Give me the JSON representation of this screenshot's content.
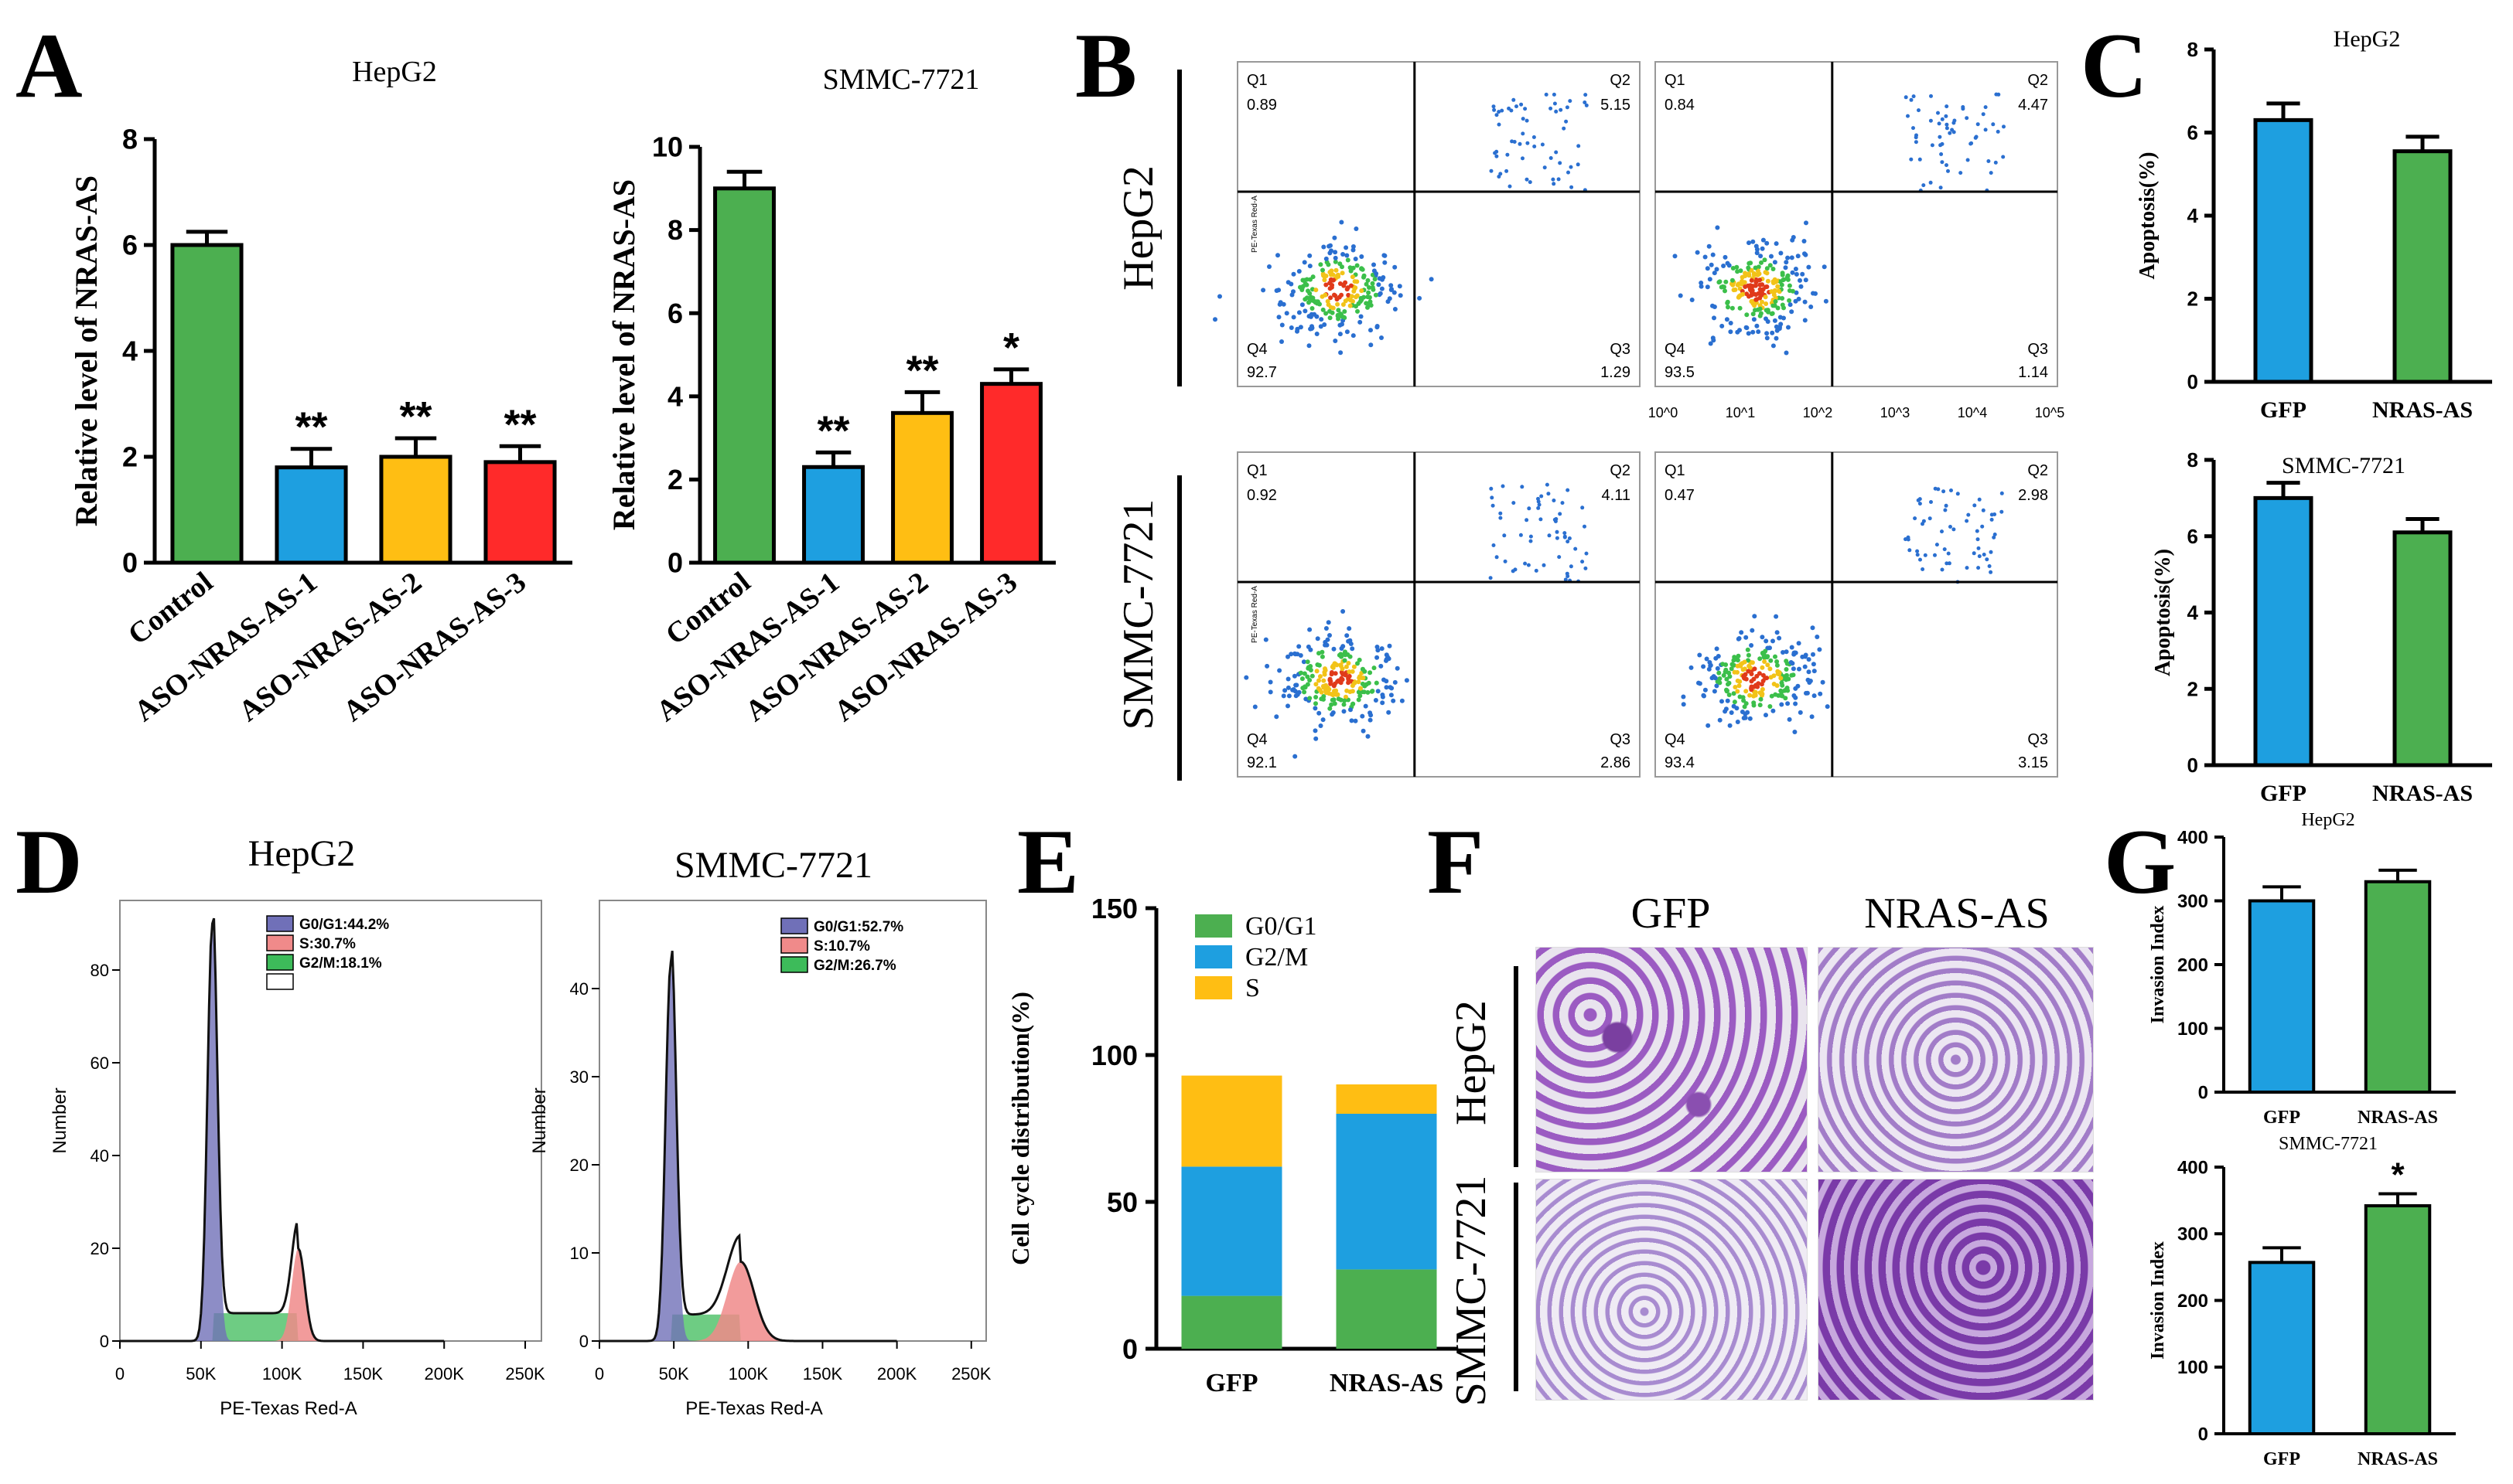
{
  "panels": {
    "A": "A",
    "B": "B",
    "C": "C",
    "D": "D",
    "E": "E",
    "F": "F",
    "G": "G"
  },
  "colors": {
    "green": "#4CAF50",
    "blue": "#1E9FE0",
    "orange": "#FFBE13",
    "red": "#FF2A2A",
    "axis": "#000000"
  },
  "chart_data": [
    {
      "id": "A1",
      "type": "bar",
      "title": "HepG2",
      "ylabel": "Relative level of NRAS-AS",
      "categories": [
        "Control",
        "ASO-NRAS-AS-1",
        "ASO-NRAS-AS-2",
        "ASO-NRAS-AS-3"
      ],
      "values": [
        6.0,
        1.8,
        2.0,
        1.9
      ],
      "errors": [
        0.25,
        0.35,
        0.35,
        0.3
      ],
      "significance": [
        "",
        "**",
        "**",
        "**"
      ],
      "colors": [
        "#4CAF50",
        "#1E9FE0",
        "#FFBE13",
        "#FF2A2A"
      ],
      "ylim": [
        0,
        8
      ],
      "yticks": [
        "0",
        "2",
        "4",
        "6",
        "8"
      ]
    },
    {
      "id": "A2",
      "type": "bar",
      "title": "SMMC-7721",
      "ylabel": "Relative level of NRAS-AS",
      "categories": [
        "Control",
        "ASO-NRAS-AS-1",
        "ASO-NRAS-AS-2",
        "ASO-NRAS-AS-3"
      ],
      "values": [
        9.0,
        2.3,
        3.6,
        4.3
      ],
      "errors": [
        0.4,
        0.35,
        0.5,
        0.35
      ],
      "significance": [
        "",
        "**",
        "**",
        "*"
      ],
      "colors": [
        "#4CAF50",
        "#1E9FE0",
        "#FFBE13",
        "#FF2A2A"
      ],
      "ylim": [
        0,
        10
      ],
      "yticks": [
        "0",
        "2",
        "4",
        "6",
        "8",
        "10"
      ]
    },
    {
      "id": "B",
      "type": "scatter",
      "row_labels": [
        "HepG2",
        "SMMC-7721"
      ],
      "plots": [
        {
          "Q1": "0.89",
          "Q2": "5.15",
          "Q3": "1.29",
          "Q4": "92.7"
        },
        {
          "Q1": "0.84",
          "Q2": "4.47",
          "Q3": "1.14",
          "Q4": "93.5"
        },
        {
          "Q1": "0.92",
          "Q2": "4.11",
          "Q3": "2.86",
          "Q4": "92.1"
        },
        {
          "Q1": "0.47",
          "Q2": "2.98",
          "Q3": "3.15",
          "Q4": "93.4"
        }
      ],
      "quadrant_labels": [
        "Q1",
        "Q2",
        "Q3",
        "Q4"
      ],
      "ylabel_small": "PE-Texas Red-A",
      "log_ticks": [
        "10^0",
        "10^1",
        "10^2",
        "10^3",
        "10^4",
        "10^5"
      ]
    },
    {
      "id": "C1",
      "type": "bar",
      "title": "HepG2",
      "ylabel": "Apoptosis(%)",
      "categories": [
        "GFP",
        "NRAS-AS"
      ],
      "values": [
        6.3,
        5.55
      ],
      "errors": [
        0.4,
        0.35
      ],
      "colors": [
        "#1E9FE0",
        "#4CAF50"
      ],
      "ylim": [
        0,
        8
      ],
      "yticks": [
        "0",
        "2",
        "4",
        "6",
        "8"
      ]
    },
    {
      "id": "C2",
      "type": "bar",
      "title": "SMMC-7721",
      "ylabel": "Apoptosis(%)",
      "categories": [
        "GFP",
        "NRAS-AS"
      ],
      "values": [
        7.0,
        6.1
      ],
      "errors": [
        0.4,
        0.35
      ],
      "colors": [
        "#1E9FE0",
        "#4CAF50"
      ],
      "ylim": [
        0,
        8
      ],
      "yticks": [
        "0",
        "2",
        "4",
        "6",
        "8"
      ]
    },
    {
      "id": "D1",
      "type": "histogram",
      "title": "HepG2",
      "xlabel": "PE-Texas Red-A",
      "ylabel": "Number",
      "legend": [
        "G0/G1:44.2%",
        "S:30.7%",
        "G2/M:18.1%",
        ""
      ],
      "xticks": [
        "0",
        "50K",
        "100K",
        "150K",
        "200K",
        "250K"
      ],
      "yticks": [
        "0",
        "20",
        "40",
        "60",
        "80"
      ],
      "g1_peak": [
        57,
        90
      ],
      "g2_peak": [
        110,
        20
      ]
    },
    {
      "id": "D2",
      "type": "histogram",
      "title": "SMMC-7721",
      "xlabel": "PE-Texas Red-A",
      "ylabel": "Number",
      "legend": [
        "G0/G1:52.7%",
        "S:10.7%",
        "G2/M:26.7%"
      ],
      "xticks": [
        "0",
        "50K",
        "100K",
        "150K",
        "200K",
        "250K"
      ],
      "yticks": [
        "0",
        "10",
        "20",
        "30",
        "40"
      ],
      "g1_peak": [
        48,
        43
      ],
      "g2_peak": [
        95,
        9
      ]
    },
    {
      "id": "E",
      "type": "stacked-bar",
      "ylabel": "Cell cycle distribution(%)",
      "categories": [
        "GFP",
        "NRAS-AS"
      ],
      "series": [
        {
          "name": "G0/G1",
          "values": [
            18,
            27
          ],
          "color": "#4CAF50"
        },
        {
          "name": "G2/M",
          "values": [
            44,
            53
          ],
          "color": "#1E9FE0"
        },
        {
          "name": "S",
          "values": [
            31,
            10
          ],
          "color": "#FFBE13"
        }
      ],
      "ylim": [
        0,
        150
      ],
      "yticks": [
        "0",
        "50",
        "100",
        "150"
      ]
    },
    {
      "id": "F",
      "type": "image-grid",
      "col_labels": [
        "GFP",
        "NRAS-AS"
      ],
      "row_labels": [
        "HepG2",
        "SMMC-7721"
      ]
    },
    {
      "id": "G1",
      "type": "bar",
      "title": "HepG2",
      "ylabel": "Invasion Index",
      "categories": [
        "GFP",
        "NRAS-AS"
      ],
      "values": [
        300,
        330
      ],
      "errors": [
        22,
        18
      ],
      "significance": [
        "",
        ""
      ],
      "colors": [
        "#1E9FE0",
        "#4CAF50"
      ],
      "ylim": [
        0,
        400
      ],
      "yticks": [
        "0",
        "100",
        "200",
        "300",
        "400"
      ]
    },
    {
      "id": "G2",
      "type": "bar",
      "title": "SMMC-7721",
      "ylabel": "Invasion Index",
      "categories": [
        "GFP",
        "NRAS-AS"
      ],
      "values": [
        257,
        342
      ],
      "errors": [
        22,
        18
      ],
      "significance": [
        "",
        "*"
      ],
      "colors": [
        "#1E9FE0",
        "#4CAF50"
      ],
      "ylim": [
        0,
        400
      ],
      "yticks": [
        "0",
        "100",
        "200",
        "300",
        "400"
      ]
    }
  ]
}
